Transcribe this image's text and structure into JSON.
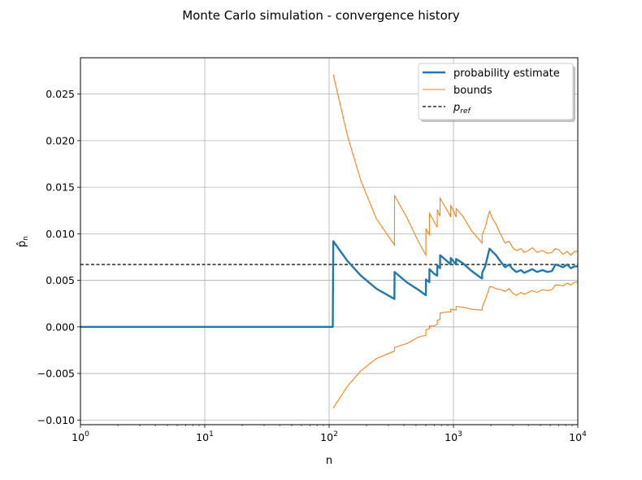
{
  "chart_data": {
    "type": "line",
    "title": "Monte Carlo simulation - convergence history",
    "xlabel": "n",
    "ylabel": "p̂",
    "ylabel_sub": "n",
    "xscale": "log",
    "xlim": [
      1,
      10000
    ],
    "ylim": [
      -0.0105,
      0.0289
    ],
    "grid": true,
    "legend_position": "top-right",
    "x_ticks": [
      {
        "value": 1,
        "base": "10",
        "exp": "0"
      },
      {
        "value": 10,
        "base": "10",
        "exp": "1"
      },
      {
        "value": 100,
        "base": "10",
        "exp": "2"
      },
      {
        "value": 1000,
        "base": "10",
        "exp": "3"
      },
      {
        "value": 10000,
        "base": "10",
        "exp": "4"
      }
    ],
    "y_ticks": [
      {
        "value": -0.01,
        "label": "−0.010"
      },
      {
        "value": -0.005,
        "label": "−0.005"
      },
      {
        "value": 0.0,
        "label": "0.000"
      },
      {
        "value": 0.005,
        "label": "0.005"
      },
      {
        "value": 0.01,
        "label": "0.010"
      },
      {
        "value": 0.015,
        "label": "0.015"
      },
      {
        "value": 0.02,
        "label": "0.020"
      },
      {
        "value": 0.025,
        "label": "0.025"
      }
    ],
    "p_ref": 0.0067,
    "series": [
      {
        "name": "probability estimate",
        "color": "#1f77b4",
        "style": "solid-thick",
        "points": [
          [
            1,
            0.0
          ],
          [
            107,
            0.0
          ],
          [
            108,
            0.0092
          ],
          [
            140,
            0.0071
          ],
          [
            180,
            0.0055
          ],
          [
            240,
            0.0041
          ],
          [
            335,
            0.003
          ],
          [
            336,
            0.0059
          ],
          [
            420,
            0.0048
          ],
          [
            520,
            0.004
          ],
          [
            600,
            0.0034
          ],
          [
            601,
            0.0051
          ],
          [
            640,
            0.0048
          ],
          [
            641,
            0.0062
          ],
          [
            700,
            0.0057
          ],
          [
            740,
            0.0055
          ],
          [
            741,
            0.0066
          ],
          [
            780,
            0.0063
          ],
          [
            781,
            0.0077
          ],
          [
            900,
            0.007
          ],
          [
            950,
            0.0067
          ],
          [
            951,
            0.0074
          ],
          [
            1050,
            0.0067
          ],
          [
            1051,
            0.0073
          ],
          [
            1200,
            0.0068
          ],
          [
            1400,
            0.006
          ],
          [
            1650,
            0.0053
          ],
          [
            1700,
            0.0052
          ],
          [
            1701,
            0.0058
          ],
          [
            1800,
            0.0065
          ],
          [
            1900,
            0.0078
          ],
          [
            1950,
            0.0084
          ],
          [
            2050,
            0.0081
          ],
          [
            2200,
            0.0077
          ],
          [
            2400,
            0.007
          ],
          [
            2600,
            0.0064
          ],
          [
            2800,
            0.0067
          ],
          [
            3000,
            0.0062
          ],
          [
            3200,
            0.0059
          ],
          [
            3500,
            0.0061
          ],
          [
            3700,
            0.0058
          ],
          [
            4000,
            0.006
          ],
          [
            4300,
            0.0062
          ],
          [
            4700,
            0.0059
          ],
          [
            5200,
            0.0061
          ],
          [
            5700,
            0.0059
          ],
          [
            6200,
            0.006
          ],
          [
            6600,
            0.0067
          ],
          [
            7000,
            0.0066
          ],
          [
            7600,
            0.0064
          ],
          [
            8200,
            0.0067
          ],
          [
            8800,
            0.0063
          ],
          [
            9400,
            0.0065
          ],
          [
            10000,
            0.0065
          ]
        ]
      },
      {
        "name": "bounds",
        "color": "#ff7f0e",
        "style": "solid-thin",
        "upper": [
          [
            108,
            0.0271
          ],
          [
            140,
            0.0206
          ],
          [
            180,
            0.0157
          ],
          [
            240,
            0.0116
          ],
          [
            335,
            0.0088
          ],
          [
            336,
            0.0141
          ],
          [
            420,
            0.0118
          ],
          [
            520,
            0.0092
          ],
          [
            600,
            0.0077
          ],
          [
            601,
            0.0105
          ],
          [
            640,
            0.0099
          ],
          [
            641,
            0.0122
          ],
          [
            700,
            0.0113
          ],
          [
            740,
            0.0107
          ],
          [
            741,
            0.0126
          ],
          [
            780,
            0.0119
          ],
          [
            781,
            0.0138
          ],
          [
            900,
            0.0124
          ],
          [
            950,
            0.0118
          ],
          [
            951,
            0.0131
          ],
          [
            1050,
            0.0118
          ],
          [
            1051,
            0.0127
          ],
          [
            1200,
            0.0118
          ],
          [
            1400,
            0.0103
          ],
          [
            1650,
            0.0092
          ],
          [
            1700,
            0.009
          ],
          [
            1701,
            0.0099
          ],
          [
            1800,
            0.0107
          ],
          [
            1900,
            0.0119
          ],
          [
            1950,
            0.0124
          ],
          [
            2050,
            0.0117
          ],
          [
            2200,
            0.011
          ],
          [
            2400,
            0.0099
          ],
          [
            2600,
            0.009
          ],
          [
            2800,
            0.0092
          ],
          [
            3000,
            0.0085
          ],
          [
            3200,
            0.0082
          ],
          [
            3500,
            0.0084
          ],
          [
            3700,
            0.008
          ],
          [
            4000,
            0.0082
          ],
          [
            4300,
            0.0085
          ],
          [
            4700,
            0.008
          ],
          [
            5200,
            0.0082
          ],
          [
            5700,
            0.0079
          ],
          [
            6200,
            0.008
          ],
          [
            6600,
            0.0084
          ],
          [
            7000,
            0.0083
          ],
          [
            7600,
            0.0078
          ],
          [
            8200,
            0.0081
          ],
          [
            8800,
            0.0077
          ],
          [
            9400,
            0.0081
          ],
          [
            10000,
            0.0081
          ]
        ],
        "lower": [
          [
            108,
            -0.0087
          ],
          [
            140,
            -0.0064
          ],
          [
            180,
            -0.0047
          ],
          [
            240,
            -0.0034
          ],
          [
            335,
            -0.0026
          ],
          [
            336,
            -0.0022
          ],
          [
            420,
            -0.0018
          ],
          [
            520,
            -0.0011
          ],
          [
            600,
            -0.0009
          ],
          [
            601,
            -0.0003
          ],
          [
            640,
            -0.0002
          ],
          [
            641,
            0.0001
          ],
          [
            700,
            0.0001
          ],
          [
            740,
            0.0003
          ],
          [
            741,
            0.0007
          ],
          [
            780,
            0.0008
          ],
          [
            781,
            0.0015
          ],
          [
            900,
            0.0016
          ],
          [
            950,
            0.0016
          ],
          [
            951,
            0.0019
          ],
          [
            1050,
            0.0018
          ],
          [
            1051,
            0.0022
          ],
          [
            1200,
            0.0021
          ],
          [
            1400,
            0.0019
          ],
          [
            1650,
            0.0018
          ],
          [
            1700,
            0.0018
          ],
          [
            1701,
            0.0021
          ],
          [
            1800,
            0.0029
          ],
          [
            1900,
            0.0038
          ],
          [
            1950,
            0.0043
          ],
          [
            2050,
            0.0043
          ],
          [
            2200,
            0.0041
          ],
          [
            2400,
            0.004
          ],
          [
            2600,
            0.0038
          ],
          [
            2800,
            0.0041
          ],
          [
            3000,
            0.0036
          ],
          [
            3200,
            0.0034
          ],
          [
            3500,
            0.0037
          ],
          [
            3700,
            0.0035
          ],
          [
            4000,
            0.0037
          ],
          [
            4300,
            0.0039
          ],
          [
            4700,
            0.0037
          ],
          [
            5200,
            0.004
          ],
          [
            5700,
            0.0039
          ],
          [
            6200,
            0.004
          ],
          [
            6600,
            0.0045
          ],
          [
            7000,
            0.0045
          ],
          [
            7600,
            0.0044
          ],
          [
            8200,
            0.0047
          ],
          [
            8800,
            0.0045
          ],
          [
            9400,
            0.0048
          ],
          [
            10000,
            0.0048
          ]
        ]
      },
      {
        "name": "p",
        "name_sub": "ref",
        "color": "#000000",
        "style": "dashed"
      }
    ]
  }
}
